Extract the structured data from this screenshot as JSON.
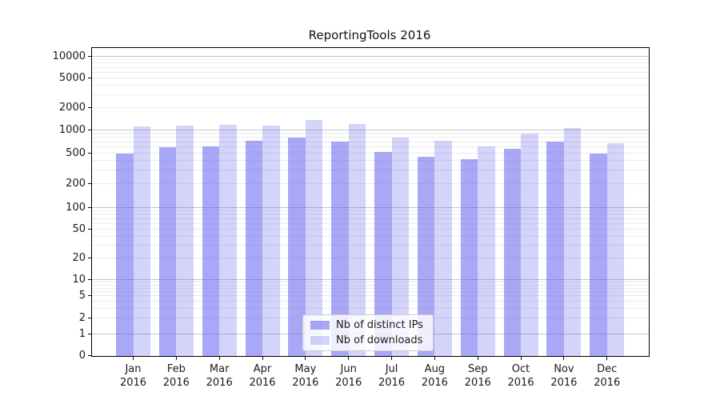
{
  "chart_data": {
    "type": "bar",
    "title": "ReportingTools 2016",
    "xlabel": "",
    "ylabel": "",
    "yscale": "symlog",
    "ylim": [
      0,
      13000
    ],
    "grid": "both",
    "legend_position": "lower center",
    "category_year": "2016",
    "categories": [
      "Jan",
      "Feb",
      "Mar",
      "Apr",
      "May",
      "Jun",
      "Jul",
      "Aug",
      "Sep",
      "Oct",
      "Nov",
      "Dec"
    ],
    "series": [
      {
        "name": "Nb of distinct IPs",
        "color_rgba": "rgba(90,90,240,0.53)",
        "values": [
          500,
          600,
          610,
          720,
          800,
          700,
          515,
          450,
          420,
          570,
          700,
          490
        ]
      },
      {
        "name": "Nb of downloads",
        "color_rgba": "rgba(90,90,240,0.26)",
        "values": [
          1120,
          1150,
          1170,
          1150,
          1380,
          1210,
          800,
          730,
          610,
          900,
          1060,
          670
        ]
      }
    ],
    "yticks": [
      {
        "label": "10000",
        "value": 10000
      },
      {
        "label": "5000",
        "value": 5000
      },
      {
        "label": "2000",
        "value": 2000
      },
      {
        "label": "1000",
        "value": 1000
      },
      {
        "label": "500",
        "value": 500
      },
      {
        "label": "200",
        "value": 200
      },
      {
        "label": "100",
        "value": 100
      },
      {
        "label": "50",
        "value": 50
      },
      {
        "label": "20",
        "value": 20
      },
      {
        "label": "10",
        "value": 10
      },
      {
        "label": "5",
        "value": 5
      },
      {
        "label": "2",
        "value": 2
      },
      {
        "label": "1",
        "value": 1
      },
      {
        "label": "0",
        "value": 0
      }
    ],
    "colors": {
      "axis": "#000000",
      "grid_major": "#c5c5c5",
      "grid_minor": "#ebebeb",
      "text": "#1a1a1a",
      "background": "#ffffff"
    }
  }
}
